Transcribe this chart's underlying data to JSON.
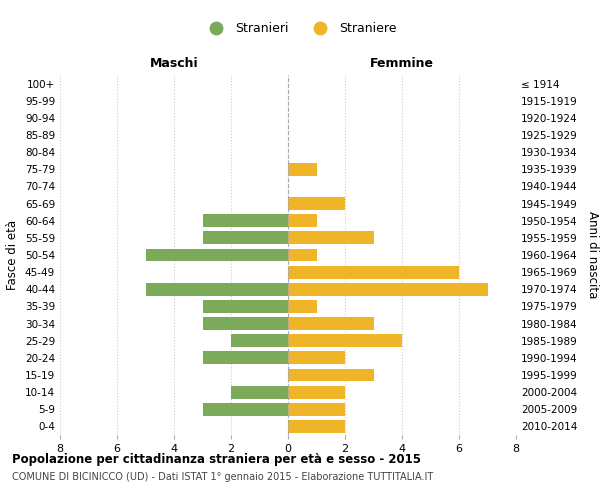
{
  "age_groups": [
    "0-4",
    "5-9",
    "10-14",
    "15-19",
    "20-24",
    "25-29",
    "30-34",
    "35-39",
    "40-44",
    "45-49",
    "50-54",
    "55-59",
    "60-64",
    "65-69",
    "70-74",
    "75-79",
    "80-84",
    "85-89",
    "90-94",
    "95-99",
    "100+"
  ],
  "birth_years": [
    "2010-2014",
    "2005-2009",
    "2000-2004",
    "1995-1999",
    "1990-1994",
    "1985-1989",
    "1980-1984",
    "1975-1979",
    "1970-1974",
    "1965-1969",
    "1960-1964",
    "1955-1959",
    "1950-1954",
    "1945-1949",
    "1940-1944",
    "1935-1939",
    "1930-1934",
    "1925-1929",
    "1920-1924",
    "1915-1919",
    "≤ 1914"
  ],
  "maschi": [
    0,
    3,
    2,
    0,
    3,
    2,
    3,
    3,
    5,
    0,
    5,
    3,
    3,
    0,
    0,
    0,
    0,
    0,
    0,
    0,
    0
  ],
  "femmine": [
    2,
    2,
    2,
    3,
    2,
    4,
    3,
    1,
    7,
    6,
    1,
    3,
    1,
    2,
    0,
    1,
    0,
    0,
    0,
    0,
    0
  ],
  "maschi_color": "#7aaa5a",
  "femmine_color": "#f0b429",
  "title_main": "Popolazione per cittadinanza straniera per età e sesso - 2015",
  "title_sub": "COMUNE DI BICINICCO (UD) - Dati ISTAT 1° gennaio 2015 - Elaborazione TUTTITALIA.IT",
  "legend_maschi": "Stranieri",
  "legend_femmine": "Straniere",
  "label_maschi": "Maschi",
  "label_femmine": "Femmine",
  "ylabel_left": "Fasce di età",
  "ylabel_right": "Anni di nascita",
  "xlim": 8,
  "background_color": "#ffffff",
  "grid_color": "#cccccc",
  "grid_style": "dotted"
}
